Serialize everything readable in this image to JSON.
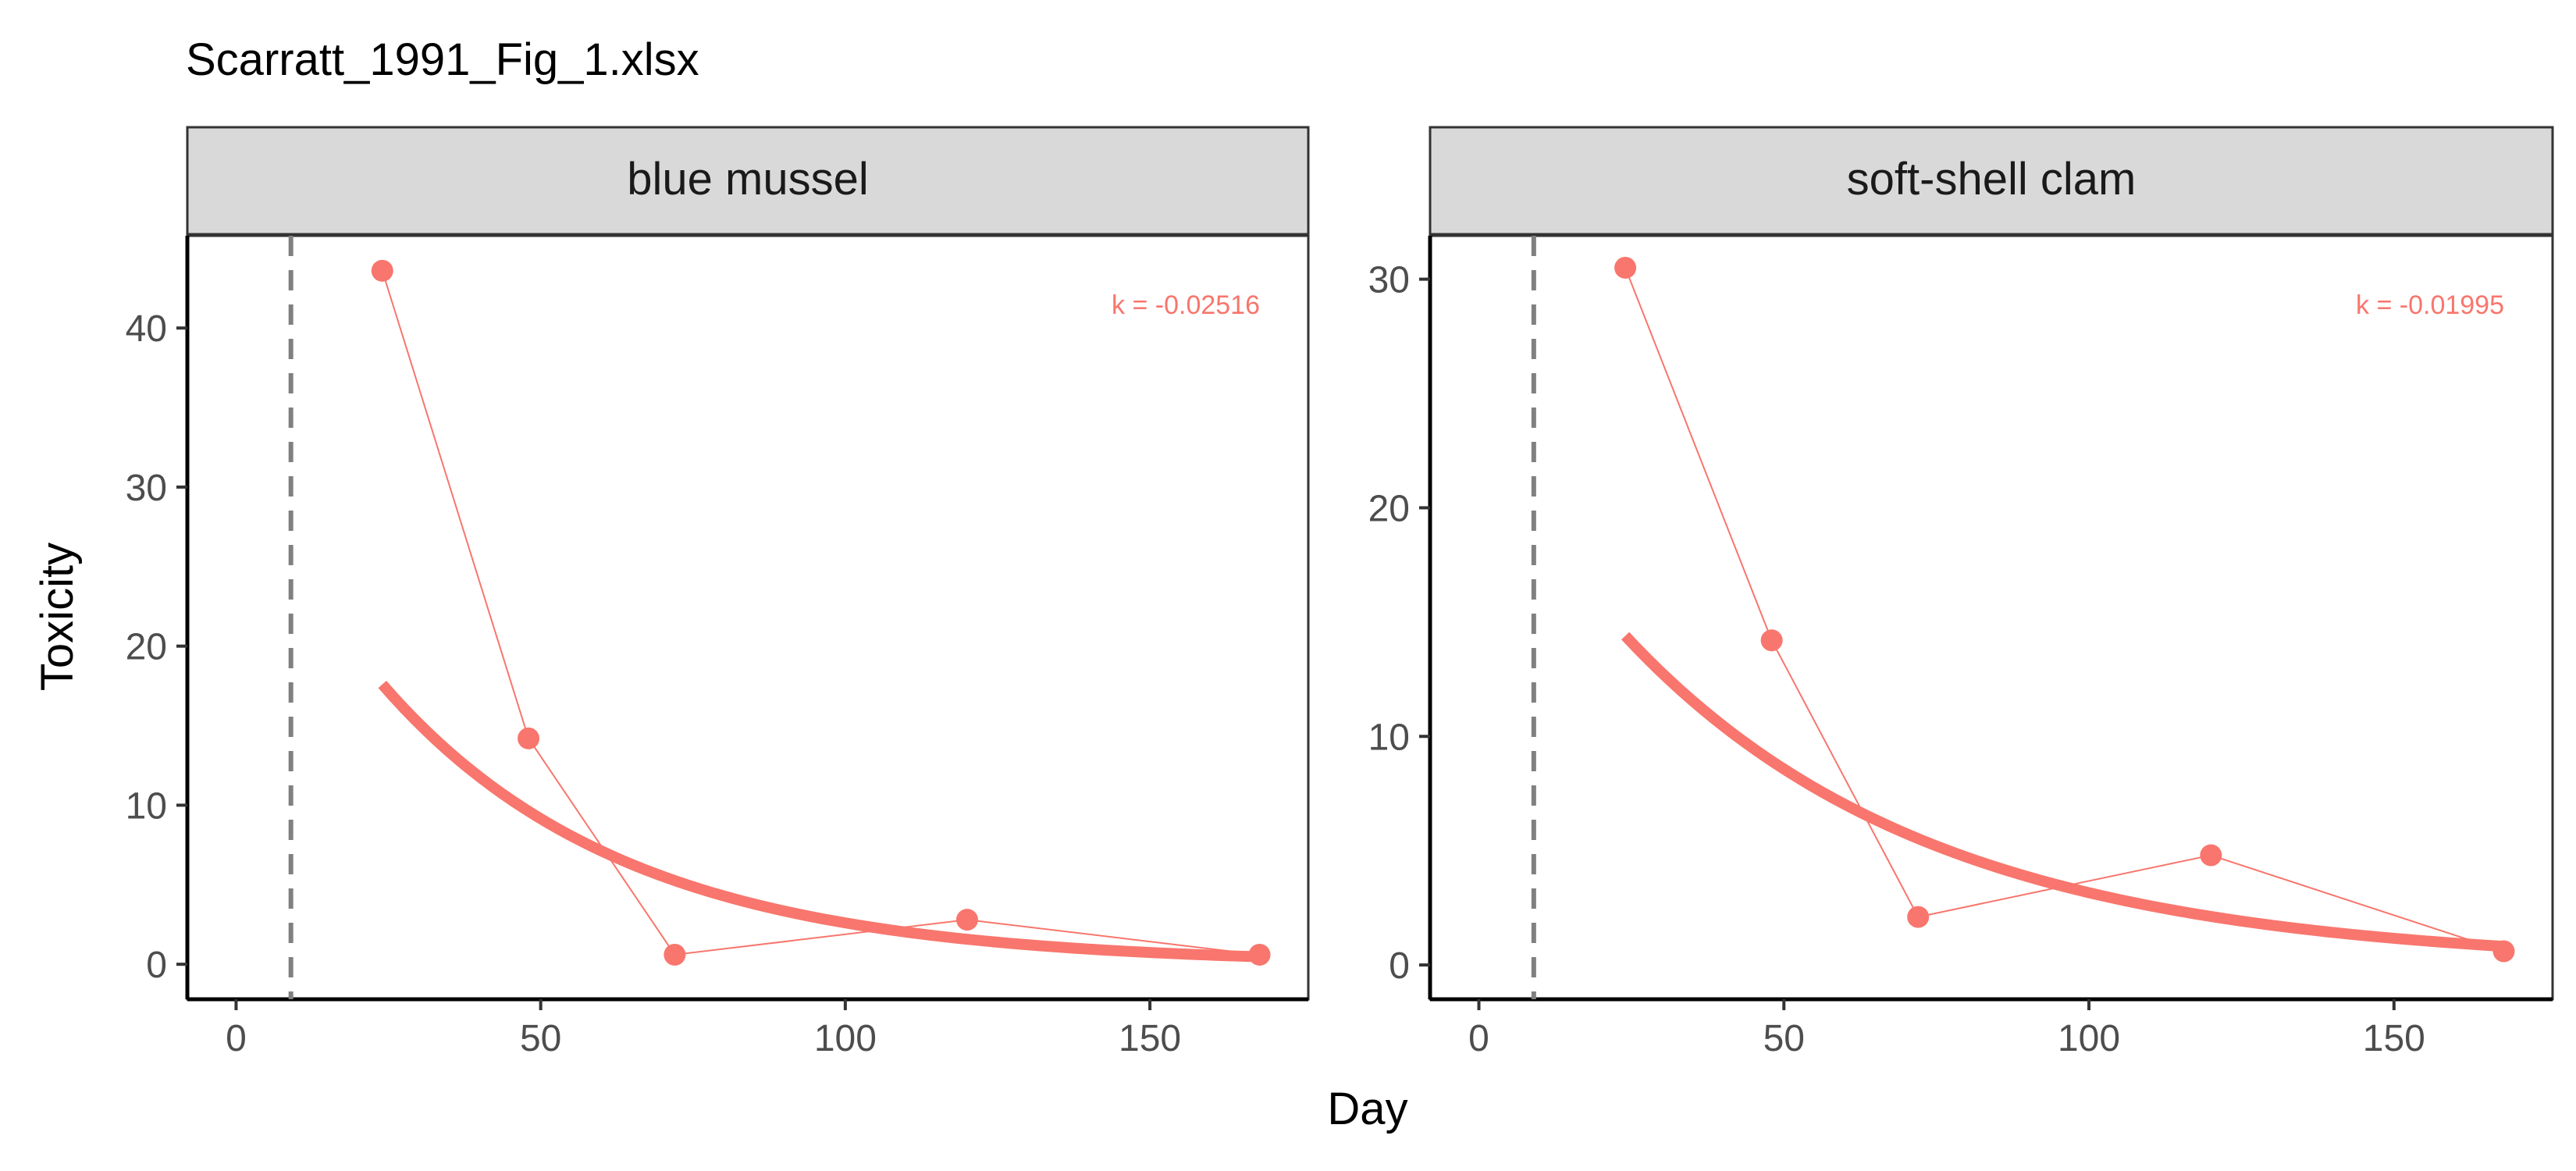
{
  "chart_data": {
    "type": "scatter",
    "title": "Scarratt_1991_Fig_1.xlsx",
    "xlabel": "Day",
    "ylabel": "Toxicity",
    "colors": {
      "series": "#F8766D",
      "vline": "#808080"
    },
    "xlim": [
      -8,
      176
    ],
    "xticks": [
      0,
      50,
      100,
      150
    ],
    "grid": false,
    "legend": "none",
    "panels": [
      {
        "strip": "blue mussel",
        "ylim": [
          -2.2,
          45.8
        ],
        "yticks": [
          0,
          10,
          20,
          30,
          40
        ],
        "annotation": "k = -0.02516",
        "k": -0.02516,
        "vline_x": 9,
        "points": [
          {
            "x": 24,
            "y": 43.6
          },
          {
            "x": 48,
            "y": 14.2
          },
          {
            "x": 72,
            "y": 0.6
          },
          {
            "x": 120,
            "y": 2.8
          },
          {
            "x": 168,
            "y": 0.6
          }
        ],
        "fit": {
          "x_start": 24,
          "x_end": 168,
          "y_at_start": 17.6
        }
      },
      {
        "strip": "soft-shell clam",
        "ylim": [
          -1.5,
          31.9
        ],
        "yticks": [
          0,
          10,
          20,
          30
        ],
        "annotation": "k = -0.01995",
        "k": -0.01995,
        "vline_x": 9,
        "points": [
          {
            "x": 24,
            "y": 30.5
          },
          {
            "x": 48,
            "y": 14.2
          },
          {
            "x": 72,
            "y": 2.1
          },
          {
            "x": 120,
            "y": 4.8
          },
          {
            "x": 168,
            "y": 0.6
          }
        ],
        "fit": {
          "x_start": 24,
          "x_end": 168,
          "y_at_start": 14.4
        }
      }
    ]
  }
}
